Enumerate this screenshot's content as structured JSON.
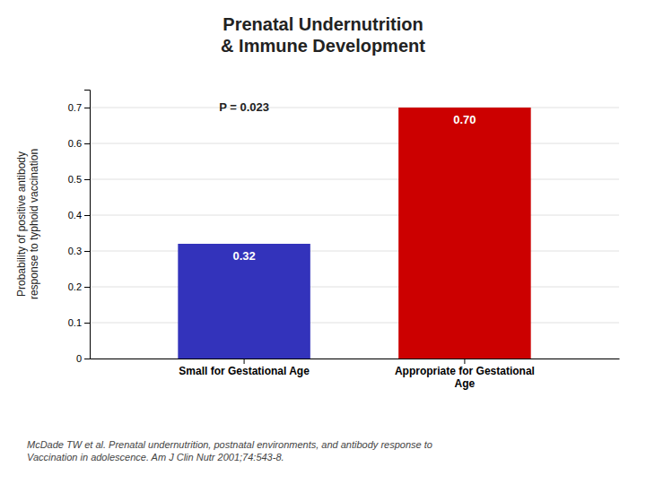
{
  "chart_data": {
    "type": "bar",
    "title": "Prenatal Undernutrition\n& Immune Development",
    "categories": [
      "Small for Gestational Age",
      "Appropriate for Gestational\nAge"
    ],
    "values": [
      0.32,
      0.7
    ],
    "value_labels": [
      "0.32",
      "0.70"
    ],
    "data_labels": true,
    "colors": [
      "#3333bb",
      "#cc0000"
    ],
    "y_label": "Probability of positive antibody\nresponse to typhoid vaccination",
    "ylim": [
      0,
      0.75
    ],
    "yticks": [
      0,
      0.1,
      0.2,
      0.3,
      0.4,
      0.5,
      0.6,
      0.7
    ],
    "grid": true,
    "annotations": [
      "P = 0.023"
    ],
    "footer": "McDade TW et al. Prenatal undernutrition, postnatal environments, and antibody response to\nVaccination in adolescence. Am J Clin Nutr 2001;74:543-8."
  }
}
